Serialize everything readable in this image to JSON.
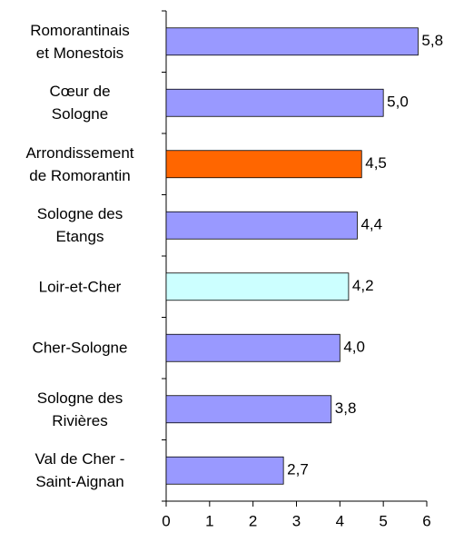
{
  "chart_data": {
    "type": "bar",
    "orientation": "horizontal",
    "categories": [
      "Romorantinais\net  Monestois",
      "Cœur de\nSologne",
      "Arrondissement\nde Romorantin",
      "Sologne des\nEtangs",
      "Loir-et-Cher",
      "Cher-Sologne",
      "Sologne des\nRivières",
      "Val de Cher -\nSaint-Aignan"
    ],
    "values": [
      5.8,
      5.0,
      4.5,
      4.4,
      4.2,
      4.0,
      3.8,
      2.7
    ],
    "value_labels": [
      "5,8",
      "5,0",
      "4,5",
      "4,4",
      "4,2",
      "4,0",
      "3,8",
      "2,7"
    ],
    "colors": [
      "#9999ff",
      "#9999ff",
      "#ff6600",
      "#9999ff",
      "#ccffff",
      "#9999ff",
      "#9999ff",
      "#9999ff"
    ],
    "xlim": [
      0,
      6
    ],
    "xticks": [
      0,
      1,
      2,
      3,
      4,
      5,
      6
    ]
  }
}
